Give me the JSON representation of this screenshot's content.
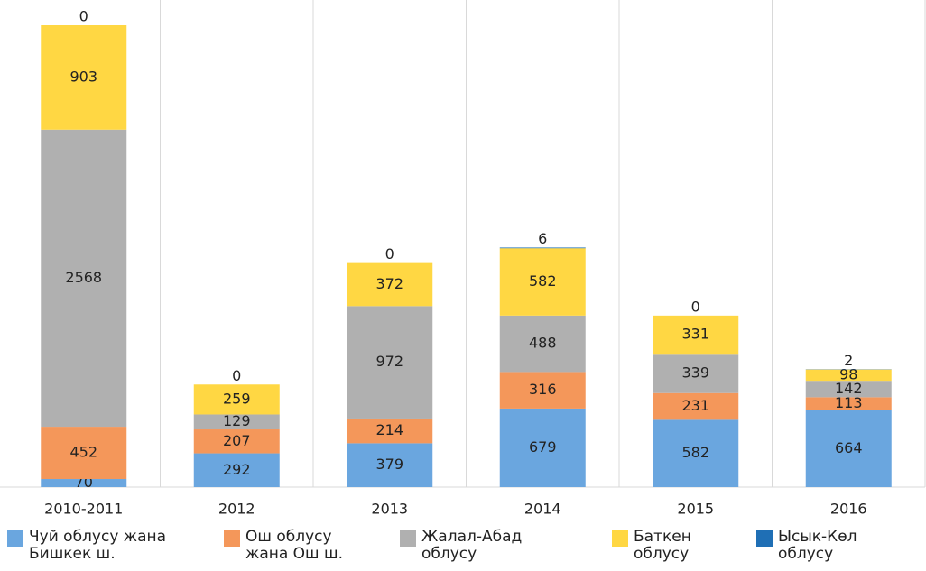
{
  "chart_data": {
    "type": "stacked-bar",
    "categories": [
      "2010-2011",
      "2012",
      "2013",
      "2014",
      "2015",
      "2016"
    ],
    "series": [
      {
        "name": "Чуй облусу жана Бишкек ш.",
        "color": "#6aa6df",
        "values": [
          70,
          292,
          379,
          679,
          582,
          664
        ]
      },
      {
        "name": "Ош облусу жана Ош ш.",
        "color": "#f4975a",
        "values": [
          452,
          207,
          214,
          316,
          231,
          113
        ]
      },
      {
        "name": "Жалал-Абад облусу",
        "color": "#b0b0b0",
        "values": [
          2568,
          129,
          972,
          488,
          339,
          142
        ]
      },
      {
        "name": "Баткен облусу",
        "color": "#ffd743",
        "values": [
          903,
          259,
          372,
          582,
          331,
          98
        ]
      },
      {
        "name": "Ысык-Көл облусу",
        "color": "#1f6fb5",
        "values": [
          0,
          0,
          0,
          6,
          0,
          2
        ]
      }
    ],
    "grid": true,
    "legend": "bottom"
  }
}
